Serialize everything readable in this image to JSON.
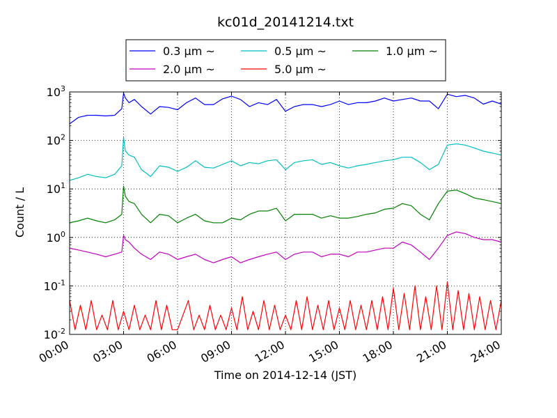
{
  "chart_data": {
    "type": "line",
    "title": "kc01d_20141214.txt",
    "xlabel": "Time on 2014-12-14 (JST)",
    "ylabel": "Count / L",
    "xlim": [
      0,
      24
    ],
    "ylim": [
      0.01,
      1000
    ],
    "yscale": "log",
    "grid": "dotted",
    "legend_position": "top-center",
    "x_ticks": [
      0,
      3,
      6,
      9,
      12,
      15,
      18,
      21,
      24
    ],
    "x_tick_labels": [
      "00:00",
      "03:00",
      "06:00",
      "09:00",
      "12:00",
      "15:00",
      "18:00",
      "21:00",
      "24:00"
    ],
    "y_ticks": [
      {
        "base": "10",
        "exp": "-2"
      },
      {
        "base": "10",
        "exp": "-1"
      },
      {
        "base": "10",
        "exp": "0"
      },
      {
        "base": "10",
        "exp": "1"
      },
      {
        "base": "10",
        "exp": "2"
      },
      {
        "base": "10",
        "exp": "3"
      }
    ],
    "series": [
      {
        "name": "0.3 μm ~",
        "color": "#0000ff",
        "x": [
          0,
          0.5,
          1,
          1.5,
          2,
          2.5,
          2.9,
          3.0,
          3.1,
          3.3,
          3.6,
          4,
          4.5,
          5,
          5.5,
          6,
          6.5,
          7,
          7.5,
          8,
          8.5,
          9,
          9.5,
          10,
          10.5,
          11,
          11.5,
          12,
          12.5,
          13,
          13.5,
          14,
          14.5,
          15,
          15.5,
          16,
          16.5,
          17,
          17.5,
          18,
          18.5,
          19,
          19.5,
          20,
          20.5,
          21,
          21.5,
          22,
          22.5,
          23,
          23.5,
          24
        ],
        "y": [
          220,
          300,
          330,
          330,
          320,
          330,
          450,
          950,
          750,
          600,
          700,
          500,
          350,
          500,
          480,
          430,
          600,
          750,
          550,
          550,
          720,
          820,
          700,
          500,
          600,
          550,
          700,
          400,
          500,
          550,
          550,
          500,
          550,
          650,
          550,
          600,
          600,
          650,
          750,
          650,
          700,
          750,
          650,
          650,
          450,
          900,
          800,
          850,
          750,
          560,
          650,
          560
        ]
      },
      {
        "name": "0.5 μm ~",
        "color": "#00bfbf",
        "x": [
          0,
          0.5,
          1,
          1.5,
          2,
          2.5,
          2.9,
          3.0,
          3.1,
          3.3,
          3.6,
          4,
          4.5,
          5,
          5.5,
          6,
          6.5,
          7,
          7.5,
          8,
          8.5,
          9,
          9.5,
          10,
          10.5,
          11,
          11.5,
          12,
          12.5,
          13,
          13.5,
          14,
          14.5,
          15,
          15.5,
          16,
          16.5,
          17,
          17.5,
          18,
          18.5,
          19,
          19.5,
          20,
          20.5,
          21,
          21.5,
          22,
          22.5,
          23,
          23.5,
          24
        ],
        "y": [
          15,
          17,
          20,
          18,
          17,
          20,
          30,
          115,
          60,
          50,
          45,
          25,
          18,
          30,
          28,
          23,
          28,
          38,
          28,
          27,
          32,
          38,
          30,
          35,
          33,
          38,
          40,
          25,
          35,
          38,
          40,
          32,
          35,
          30,
          27,
          30,
          32,
          35,
          38,
          40,
          45,
          45,
          35,
          25,
          32,
          80,
          85,
          80,
          70,
          60,
          55,
          50
        ]
      },
      {
        "name": "1.0 μm ~",
        "color": "#008000",
        "x": [
          0,
          0.5,
          1,
          1.5,
          2,
          2.5,
          2.9,
          3.0,
          3.1,
          3.3,
          3.6,
          4,
          4.5,
          5,
          5.5,
          6,
          6.5,
          7,
          7.5,
          8,
          8.5,
          9,
          9.5,
          10,
          10.5,
          11,
          11.5,
          12,
          12.5,
          13,
          13.5,
          14,
          14.5,
          15,
          15.5,
          16,
          16.5,
          17,
          17.5,
          18,
          18.5,
          19,
          19.5,
          20,
          20.5,
          21,
          21.5,
          22,
          22.5,
          23,
          23.5,
          24
        ],
        "y": [
          2.0,
          2.2,
          2.5,
          2.2,
          2.0,
          2.3,
          3.0,
          11.5,
          7.0,
          5.5,
          5.0,
          3.0,
          2.0,
          3.0,
          2.8,
          2.0,
          2.5,
          3.0,
          2.2,
          2.0,
          2.0,
          2.5,
          2.3,
          3.0,
          3.5,
          3.5,
          4.0,
          2.2,
          3.0,
          3.0,
          3.0,
          2.5,
          2.8,
          2.5,
          2.5,
          2.7,
          3.0,
          3.2,
          3.8,
          4.0,
          5.0,
          4.5,
          3.0,
          2.3,
          5.0,
          9.0,
          9.5,
          8.0,
          6.5,
          6.0,
          5.5,
          5.0
        ]
      },
      {
        "name": "2.0 μm ~",
        "color": "#bf00bf",
        "x": [
          0,
          0.5,
          1,
          1.5,
          2,
          2.5,
          2.9,
          3.0,
          3.1,
          3.3,
          3.6,
          4,
          4.5,
          5,
          5.5,
          6,
          6.5,
          7,
          7.5,
          8,
          8.5,
          9,
          9.5,
          10,
          10.5,
          11,
          11.5,
          12,
          12.5,
          13,
          13.5,
          14,
          14.5,
          15,
          15.5,
          16,
          16.5,
          17,
          17.5,
          18,
          18.5,
          19,
          19.5,
          20,
          20.5,
          21,
          21.5,
          22,
          22.5,
          23,
          23.5,
          24
        ],
        "y": [
          0.6,
          0.55,
          0.5,
          0.45,
          0.4,
          0.45,
          0.5,
          1.1,
          0.9,
          0.8,
          0.6,
          0.45,
          0.35,
          0.5,
          0.45,
          0.35,
          0.4,
          0.45,
          0.35,
          0.3,
          0.35,
          0.4,
          0.3,
          0.35,
          0.4,
          0.45,
          0.5,
          0.35,
          0.45,
          0.5,
          0.5,
          0.4,
          0.45,
          0.45,
          0.4,
          0.5,
          0.5,
          0.55,
          0.6,
          0.6,
          0.8,
          0.7,
          0.5,
          0.35,
          0.6,
          1.1,
          1.3,
          1.2,
          1.0,
          0.9,
          0.9,
          0.8
        ]
      },
      {
        "name": "5.0 μm ~",
        "color": "#ff0000",
        "x": [
          0,
          0.3,
          0.6,
          0.9,
          1.2,
          1.5,
          1.8,
          2.1,
          2.4,
          2.7,
          3.0,
          3.3,
          3.6,
          3.9,
          4.2,
          4.5,
          4.8,
          5.1,
          5.4,
          5.7,
          6.0,
          6.6,
          6.9,
          7.2,
          7.5,
          7.8,
          8.1,
          8.4,
          8.7,
          9.0,
          9.3,
          9.6,
          9.9,
          10.2,
          10.5,
          10.8,
          11.1,
          11.4,
          11.7,
          12.0,
          12.3,
          12.6,
          12.9,
          13.2,
          13.5,
          13.8,
          14.1,
          14.4,
          14.7,
          15.0,
          15.3,
          15.6,
          15.9,
          16.2,
          16.5,
          16.8,
          17.1,
          17.4,
          17.7,
          18.0,
          18.3,
          18.6,
          18.9,
          19.2,
          19.5,
          19.8,
          20.1,
          20.4,
          20.7,
          21.0,
          21.3,
          21.6,
          21.9,
          22.2,
          22.5,
          22.8,
          23.1,
          23.4,
          23.7,
          24.0
        ],
        "y": [
          0.05,
          0.0125,
          0.04,
          0.0125,
          0.05,
          0.0125,
          0.025,
          0.0125,
          0.05,
          0.0125,
          0.03,
          0.0125,
          0.04,
          0.0125,
          0.025,
          0.0125,
          0.05,
          0.0125,
          0.04,
          0.0125,
          0.0125,
          0.05,
          0.0125,
          0.025,
          0.0125,
          0.04,
          0.0125,
          0.025,
          0.0125,
          0.035,
          0.0125,
          0.06,
          0.0125,
          0.03,
          0.0125,
          0.05,
          0.0125,
          0.04,
          0.0125,
          0.025,
          0.0125,
          0.05,
          0.0125,
          0.06,
          0.0125,
          0.04,
          0.0125,
          0.05,
          0.0125,
          0.035,
          0.0125,
          0.05,
          0.0125,
          0.04,
          0.0125,
          0.05,
          0.0125,
          0.06,
          0.0125,
          0.09,
          0.0125,
          0.07,
          0.0125,
          0.1,
          0.0125,
          0.06,
          0.0125,
          0.1,
          0.0125,
          0.12,
          0.0125,
          0.08,
          0.0125,
          0.07,
          0.0125,
          0.06,
          0.0125,
          0.05,
          0.0125,
          0.05
        ]
      }
    ]
  }
}
